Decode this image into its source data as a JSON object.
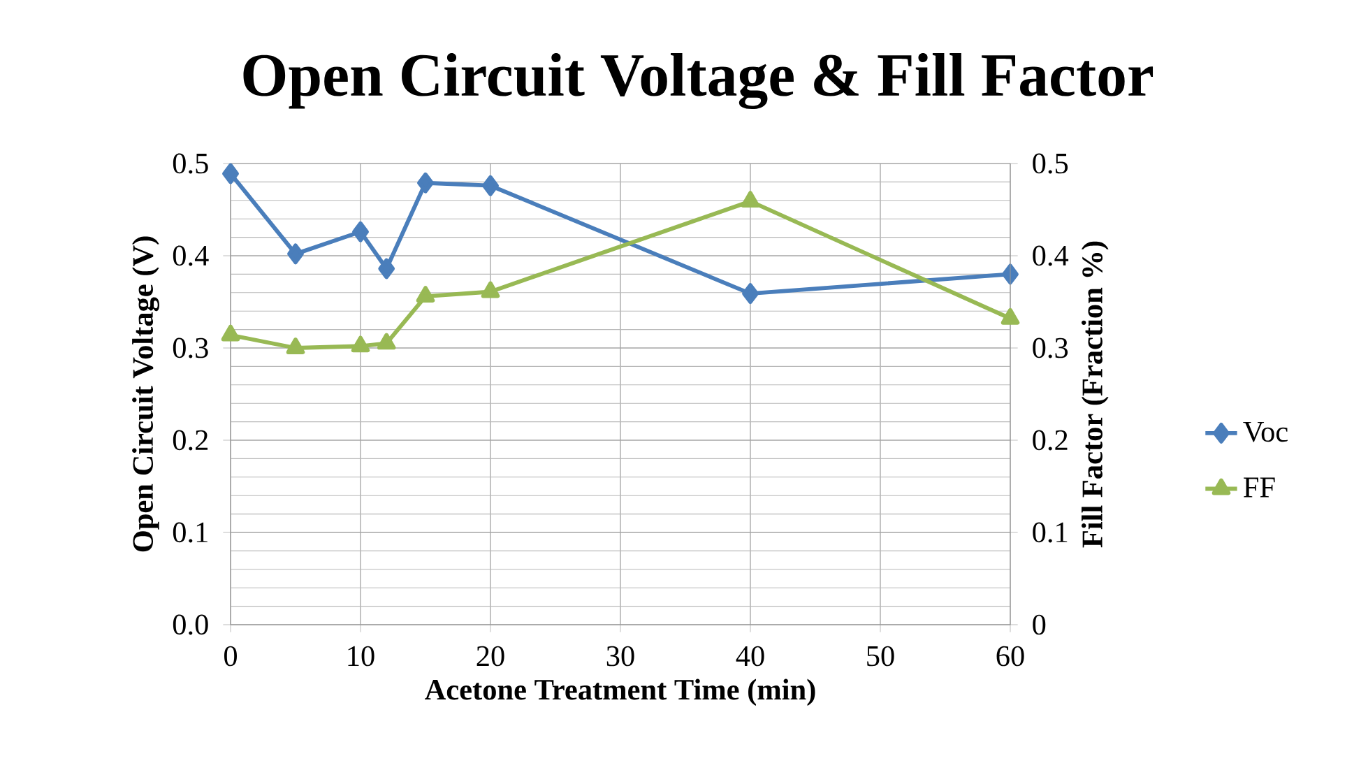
{
  "chart_data": {
    "type": "line",
    "title": "Open Circuit Voltage & Fill Factor",
    "xlabel": "Acetone Treatment Time (min)",
    "ylabel": "Open Circuit Voltage (V)",
    "y2label": "Fill Factor (Fraction %)",
    "x": [
      0,
      5,
      10,
      12,
      15,
      20,
      40,
      60
    ],
    "series": [
      {
        "name": "Voc",
        "color": "#4a7ebb",
        "marker": "diamond",
        "values": [
          0.489,
          0.402,
          0.426,
          0.386,
          0.479,
          0.476,
          0.359,
          0.38
        ]
      },
      {
        "name": "FF",
        "color": "#98b954",
        "marker": "triangle",
        "axis": "y2",
        "values": [
          0.314,
          0.3,
          0.302,
          0.305,
          0.356,
          0.361,
          0.459,
          0.332
        ]
      }
    ],
    "xlim": [
      0,
      60
    ],
    "xticks": [
      0,
      10,
      20,
      30,
      40,
      50,
      60
    ],
    "ylim": [
      0,
      0.5
    ],
    "yticks": [
      {
        "value": 0,
        "label": "0.0"
      },
      {
        "value": 0.1,
        "label": "0.1"
      },
      {
        "value": 0.2,
        "label": "0.2"
      },
      {
        "value": 0.3,
        "label": "0.3"
      },
      {
        "value": 0.4,
        "label": "0.4"
      },
      {
        "value": 0.5,
        "label": "0.5"
      }
    ],
    "y2lim": [
      0,
      0.5
    ],
    "y2ticks": [
      0,
      0.1,
      0.2,
      0.3,
      0.4,
      0.5
    ],
    "grid": true,
    "legend": "right",
    "line_style": "solid"
  }
}
